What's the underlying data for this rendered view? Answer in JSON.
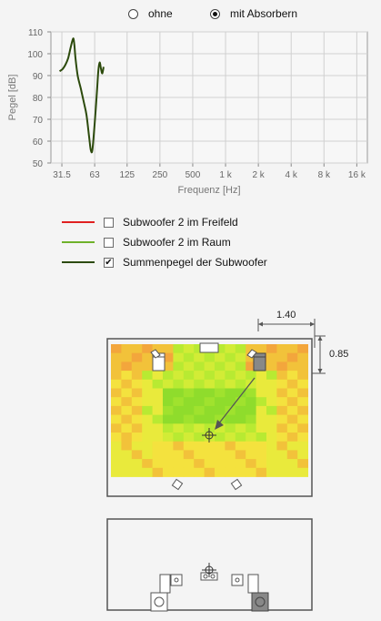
{
  "mode": {
    "option_without": "ohne",
    "option_with": "mit Absorbern",
    "selected": "mit Absorbern"
  },
  "chart_data": {
    "type": "line",
    "xscale": "log",
    "x_ticks": [
      31.5,
      63,
      125,
      250,
      500,
      1000,
      2000,
      4000,
      8000,
      16000
    ],
    "x_tick_labels": [
      "31.5",
      "63",
      "125",
      "250",
      "500",
      "1 k",
      "2 k",
      "4 k",
      "8 k",
      "16 k"
    ],
    "xlim": [
      25,
      20000
    ],
    "ylim": [
      50,
      110
    ],
    "y_ticks": [
      50,
      60,
      70,
      80,
      90,
      100,
      110
    ],
    "xlabel": "Frequenz [Hz]",
    "ylabel": "Pegel [dB]",
    "grid": true,
    "legend": "below",
    "series": [
      {
        "name": "Summenpegel der Subwoofer",
        "color": "#2c4a0c",
        "x": [
          30,
          32,
          34,
          36,
          38,
          40,
          41,
          42,
          44,
          47,
          50,
          53,
          56,
          58,
          60,
          63,
          66,
          68,
          70,
          72,
          74,
          76
        ],
        "y": [
          92,
          93,
          95,
          98,
          103,
          107,
          104,
          98,
          90,
          84,
          78,
          72,
          62,
          56,
          56,
          68,
          82,
          92,
          96,
          93,
          91,
          94
        ]
      }
    ]
  },
  "legend": {
    "items": [
      {
        "label": "Subwoofer 2 im Freifeld",
        "color": "#e02020",
        "checked": false,
        "mark": ""
      },
      {
        "label": "Subwoofer 2 im Raum",
        "color": "#6fb12a",
        "checked": false,
        "mark": ""
      },
      {
        "label": "Summenpegel der Subwoofer",
        "color": "#2c4a0c",
        "checked": true,
        "mark": "✔"
      }
    ]
  },
  "room": {
    "dim_width": "1.40",
    "dim_height": "0.85",
    "heatmap_palette": [
      "#f4e23e",
      "#e9ea3c",
      "#d2ec36",
      "#b8ea32",
      "#a0e22e",
      "#8fdc2c",
      "#f2c23a",
      "#f3a63c"
    ]
  }
}
